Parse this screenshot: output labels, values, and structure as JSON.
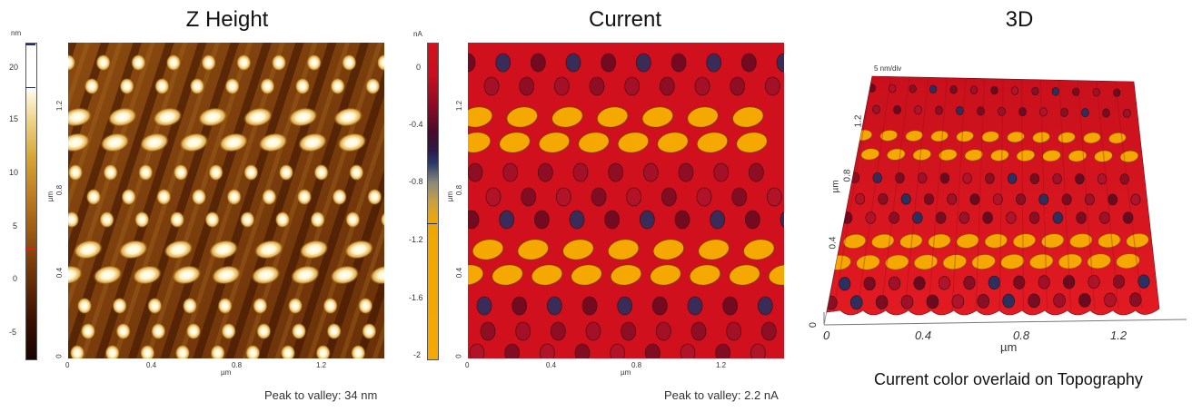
{
  "panels": [
    {
      "title": "Z Height",
      "colorbar": {
        "unit": "nm",
        "ticks": [
          "20",
          "15",
          "10",
          "5",
          "0",
          "-5"
        ]
      },
      "axes": {
        "y_unit": "µm",
        "x_unit": "µm",
        "y_ticks": [
          "1.2",
          "0.8",
          "0.4",
          "0"
        ],
        "x_ticks": [
          "0",
          "0.4",
          "0.8",
          "1.2"
        ]
      },
      "footer": "Peak to valley: 34 nm"
    },
    {
      "title": "Current",
      "colorbar": {
        "unit": "nA",
        "ticks": [
          "0",
          "-0.4",
          "-0.8",
          "-1.2",
          "-1.6",
          "-2"
        ]
      },
      "axes": {
        "y_unit": "µm",
        "x_unit": "µm",
        "y_ticks": [
          "1.2",
          "0.8",
          "0.4",
          "0"
        ],
        "x_ticks": [
          "0",
          "0.4",
          "0.8",
          "1.2"
        ]
      },
      "footer": "Peak to valley: 2.2 nA"
    },
    {
      "title": "3D",
      "scale_label": "5 nm/div",
      "axes": {
        "y_unit": "µm",
        "x_unit": "µm",
        "y_ticks": [
          "1.2",
          "0.8",
          "0.4",
          "0"
        ],
        "x_ticks": [
          "0",
          "0.4",
          "0.8",
          "1.2"
        ]
      },
      "caption": "Current color overlaid on Topography"
    }
  ],
  "colors": {
    "height_dark": "#2a0800",
    "height_mid": "#b5701a",
    "height_bright": "#fff8dc",
    "current_red": "#d0101c",
    "current_orange": "#f5a800",
    "current_dark": "#6a0a20",
    "current_navy": "#2a3060"
  }
}
